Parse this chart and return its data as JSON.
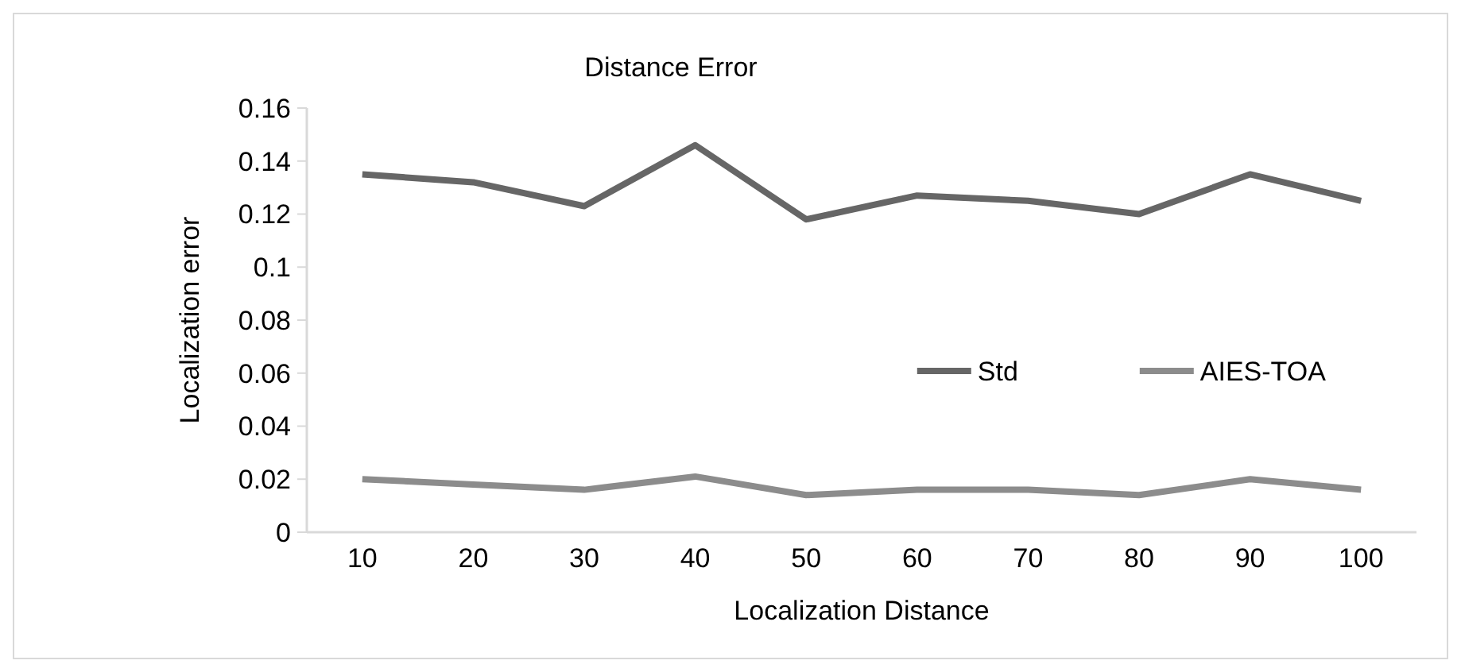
{
  "chart_data": {
    "type": "line",
    "title": "Distance Error",
    "xlabel": "Localization Distance",
    "ylabel": "Localization error",
    "categories": [
      "10",
      "20",
      "30",
      "40",
      "50",
      "60",
      "70",
      "80",
      "90",
      "100"
    ],
    "series": [
      {
        "name": "Std",
        "color": "#666666",
        "values": [
          0.135,
          0.132,
          0.123,
          0.146,
          0.118,
          0.127,
          0.125,
          0.12,
          0.135,
          0.125
        ]
      },
      {
        "name": "AIES-TOA",
        "color": "#8c8c8c",
        "values": [
          0.02,
          0.018,
          0.016,
          0.021,
          0.014,
          0.016,
          0.016,
          0.014,
          0.02,
          0.016
        ]
      }
    ],
    "ylim": [
      0,
      0.16
    ],
    "yticks": [
      0,
      0.02,
      0.04,
      0.06,
      0.08,
      0.1,
      0.12,
      0.14,
      0.16
    ],
    "grid": false,
    "legend": "center right",
    "marker": "none",
    "line_style": "solid"
  }
}
